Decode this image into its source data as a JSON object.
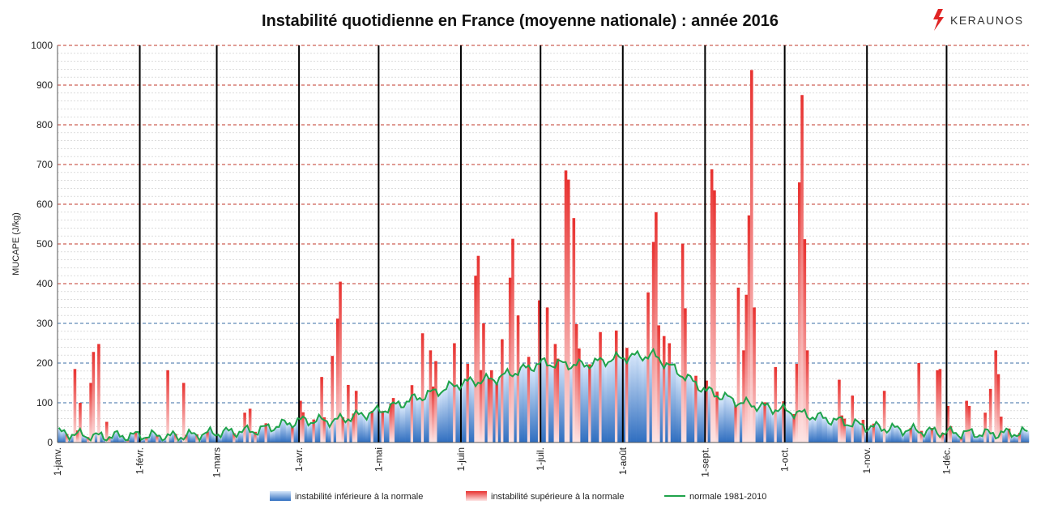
{
  "brand": {
    "name": "KERAUNOS",
    "accent": "#e02424"
  },
  "chart_data": {
    "type": "bar",
    "title": "Instabilité quotidienne en France (moyenne nationale) : année 2016",
    "ylabel": "MUCAPE (J/kg)",
    "ylim": [
      0,
      1000
    ],
    "ytick_labels": [
      "0",
      "100",
      "200",
      "300",
      "400",
      "500",
      "600",
      "700",
      "800",
      "900",
      "1000"
    ],
    "months": [
      "1-janv.",
      "1-févr.",
      "1-mars",
      "1-avr.",
      "1-mai",
      "1-juin",
      "1-juil.",
      "1-août",
      "1-sept.",
      "1-oct.",
      "1-nov.",
      "1-déc."
    ],
    "month_start_days": [
      1,
      32,
      61,
      92,
      122,
      153,
      183,
      214,
      245,
      275,
      306,
      336
    ],
    "days_in_year": 366,
    "grid": true,
    "legend_position": "bottom",
    "colors": {
      "below": "#2f6ec0",
      "above": "#e8312f",
      "normal_line": "#1fa34a",
      "major_grid": "#c0392b",
      "minor_grid": "#c8c8c8",
      "mid_grid": "#3a6ea5"
    },
    "legend": [
      {
        "key": "below",
        "label": "instabilité inférieure à la normale"
      },
      {
        "key": "above",
        "label": "instabilité supérieure à la normale"
      },
      {
        "key": "normal",
        "label": "normale 1981-2010"
      }
    ],
    "normal_anchors": [
      [
        1,
        25
      ],
      [
        15,
        15
      ],
      [
        32,
        18
      ],
      [
        45,
        15
      ],
      [
        61,
        25
      ],
      [
        75,
        30
      ],
      [
        92,
        55
      ],
      [
        105,
        55
      ],
      [
        122,
        80
      ],
      [
        135,
        110
      ],
      [
        153,
        150
      ],
      [
        165,
        160
      ],
      [
        183,
        200
      ],
      [
        198,
        195
      ],
      [
        214,
        215
      ],
      [
        225,
        220
      ],
      [
        245,
        130
      ],
      [
        258,
        100
      ],
      [
        275,
        80
      ],
      [
        290,
        60
      ],
      [
        306,
        40
      ],
      [
        320,
        32
      ],
      [
        336,
        25
      ],
      [
        350,
        22
      ],
      [
        366,
        25
      ]
    ],
    "peaks": [
      [
        7,
        185
      ],
      [
        9,
        100
      ],
      [
        13,
        150
      ],
      [
        14,
        228
      ],
      [
        16,
        248
      ],
      [
        19,
        52
      ],
      [
        42,
        182
      ],
      [
        48,
        150
      ],
      [
        71,
        75
      ],
      [
        73,
        85
      ],
      [
        85,
        45
      ],
      [
        92,
        105
      ],
      [
        100,
        165
      ],
      [
        104,
        218
      ],
      [
        106,
        312
      ],
      [
        107,
        405
      ],
      [
        110,
        145
      ],
      [
        113,
        130
      ],
      [
        127,
        112
      ],
      [
        138,
        275
      ],
      [
        141,
        232
      ],
      [
        143,
        205
      ],
      [
        150,
        250
      ],
      [
        155,
        198
      ],
      [
        158,
        420
      ],
      [
        159,
        470
      ],
      [
        161,
        300
      ],
      [
        163,
        162
      ],
      [
        166,
        148
      ],
      [
        168,
        260
      ],
      [
        171,
        415
      ],
      [
        172,
        513
      ],
      [
        174,
        320
      ],
      [
        177,
        148
      ],
      [
        182,
        358
      ],
      [
        185,
        340
      ],
      [
        188,
        248
      ],
      [
        192,
        685
      ],
      [
        193,
        662
      ],
      [
        195,
        565
      ],
      [
        196,
        298
      ],
      [
        205,
        278
      ],
      [
        211,
        282
      ],
      [
        223,
        378
      ],
      [
        225,
        505
      ],
      [
        226,
        580
      ],
      [
        227,
        295
      ],
      [
        229,
        268
      ],
      [
        231,
        250
      ],
      [
        236,
        500
      ],
      [
        237,
        338
      ],
      [
        241,
        168
      ],
      [
        247,
        688
      ],
      [
        248,
        635
      ],
      [
        257,
        390
      ],
      [
        259,
        232
      ],
      [
        260,
        372
      ],
      [
        261,
        572
      ],
      [
        262,
        938
      ],
      [
        263,
        340
      ],
      [
        271,
        190
      ],
      [
        279,
        198
      ],
      [
        280,
        655
      ],
      [
        281,
        875
      ],
      [
        282,
        512
      ],
      [
        283,
        232
      ],
      [
        295,
        158
      ],
      [
        300,
        118
      ],
      [
        312,
        130
      ],
      [
        325,
        200
      ],
      [
        332,
        182
      ],
      [
        333,
        185
      ],
      [
        336,
        92
      ],
      [
        344,
        92
      ],
      [
        350,
        75
      ],
      [
        352,
        135
      ],
      [
        354,
        232
      ],
      [
        355,
        172
      ],
      [
        356,
        65
      ],
      [
        343,
        105
      ]
    ],
    "dips": [
      [
        23,
        8
      ],
      [
        35,
        10
      ],
      [
        55,
        8
      ],
      [
        80,
        15
      ],
      [
        95,
        10
      ],
      [
        115,
        5
      ],
      [
        125,
        5
      ],
      [
        130,
        8
      ],
      [
        140,
        15
      ],
      [
        147,
        10
      ],
      [
        152,
        20
      ],
      [
        156,
        40
      ],
      [
        162,
        75
      ],
      [
        170,
        60
      ],
      [
        175,
        120
      ],
      [
        180,
        100
      ],
      [
        186,
        60
      ],
      [
        190,
        20
      ],
      [
        199,
        10
      ],
      [
        203,
        40
      ],
      [
        207,
        100
      ],
      [
        209,
        60
      ],
      [
        213,
        10
      ],
      [
        217,
        30
      ],
      [
        219,
        10
      ],
      [
        230,
        40
      ],
      [
        234,
        20
      ],
      [
        240,
        35
      ],
      [
        243,
        10
      ],
      [
        252,
        60
      ],
      [
        265,
        50
      ],
      [
        268,
        20
      ],
      [
        273,
        10
      ],
      [
        277,
        40
      ],
      [
        286,
        45
      ],
      [
        290,
        55
      ],
      [
        297,
        60
      ],
      [
        302,
        10
      ],
      [
        305,
        25
      ],
      [
        315,
        15
      ],
      [
        320,
        8
      ],
      [
        340,
        10
      ],
      [
        345,
        15
      ],
      [
        360,
        12
      ]
    ]
  }
}
